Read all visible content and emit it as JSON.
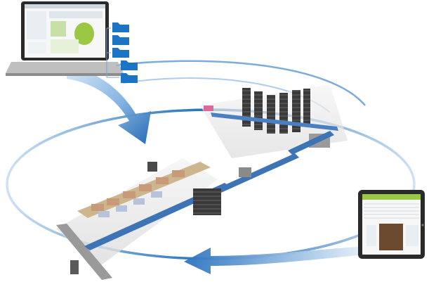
{
  "diagram": {
    "nodes": [
      {
        "id": "laptop",
        "icon": "laptop-icon"
      },
      {
        "id": "file-stack",
        "icon": "folder-icon",
        "count": 5
      },
      {
        "id": "warehouse-racks",
        "icon": "storage-rack-icon"
      },
      {
        "id": "production-line",
        "icon": "conveyor-line-icon"
      },
      {
        "id": "tablet",
        "icon": "tablet-icon"
      }
    ],
    "flow": [
      {
        "from": "laptop",
        "to": "production-line",
        "style": "curved-arrow"
      },
      {
        "from": "tablet",
        "to": "production-line",
        "style": "arrow"
      }
    ],
    "colors": {
      "cycle_blue": "#1f6fb8",
      "arrow_light": "#9cc4ea",
      "arrow_dark": "#1d63b0",
      "folder_blue": "#1b74c4",
      "screen_green": "#9ac845",
      "device_dark": "#2a2a2a"
    }
  }
}
